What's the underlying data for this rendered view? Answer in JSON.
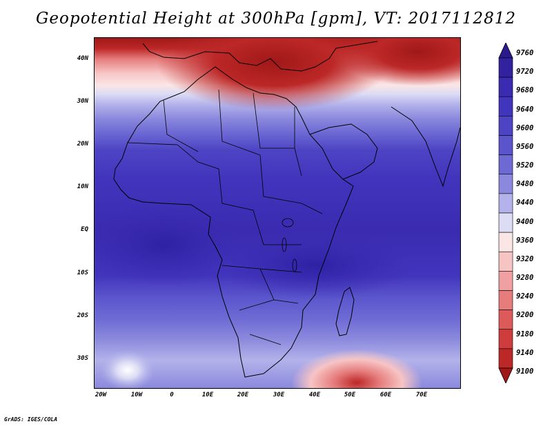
{
  "title": "Geopotential Height at 300hPa [gpm], VT: 2017112812",
  "credit": "GrADS: IGES/COLA",
  "axes": {
    "y_ticks": [
      "40N",
      "30N",
      "20N",
      "10N",
      "EQ",
      "10S",
      "20S",
      "30S"
    ],
    "x_ticks": [
      "20W",
      "10W",
      "0",
      "10E",
      "20E",
      "30E",
      "40E",
      "50E",
      "60E",
      "70E"
    ]
  },
  "colorbar": {
    "levels": [
      "9760",
      "9720",
      "9680",
      "9640",
      "9600",
      "9560",
      "9520",
      "9480",
      "9440",
      "9400",
      "9360",
      "9320",
      "9280",
      "9240",
      "9200",
      "9180",
      "9140",
      "9100"
    ],
    "colors": [
      "#2b1a8f",
      "#3322a0",
      "#3a2bb0",
      "#4235bd",
      "#4d44c4",
      "#5b55cc",
      "#6d6ad4",
      "#8b89dd",
      "#b3b2ea",
      "#dcdcf5",
      "#fbe6e6",
      "#f7c4c4",
      "#f0a0a0",
      "#e67c7c",
      "#dd5a5a",
      "#cf3c3c",
      "#bc2727",
      "#a01818"
    ]
  },
  "chart_data": {
    "type": "heatmap",
    "title": "Geopotential Height at 300hPa [gpm], VT: 2017112812",
    "variable": "Geopotential Height",
    "units": "gpm",
    "pressure_level_hPa": 300,
    "valid_time": "2017112812",
    "domain": {
      "lon_range": [
        -22,
        80
      ],
      "lat_range": [
        -37,
        45
      ]
    },
    "contour_levels": [
      9100,
      9140,
      9180,
      9200,
      9240,
      9280,
      9320,
      9360,
      9400,
      9440,
      9480,
      9520,
      9560,
      9600,
      9640,
      9680,
      9720,
      9760
    ],
    "xlabel": "",
    "ylabel": "",
    "features": [
      "high heights (~9600-9700 gpm) over tropics",
      "low heights (~9100 gpm) over Mediterranean / Turkey",
      "low heights south-east of Madagascar near 35S 50E"
    ]
  }
}
